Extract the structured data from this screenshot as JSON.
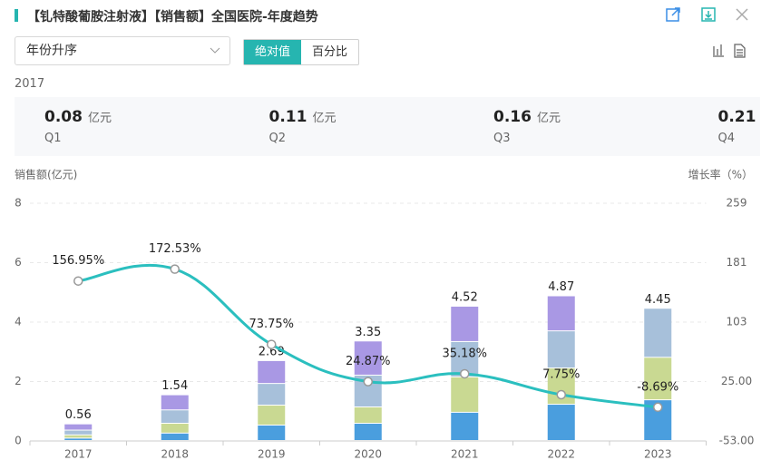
{
  "header": {
    "title": "【钆特酸葡胺注射液】【销售额】全国医院-年度趋势"
  },
  "controls": {
    "sort": "年份升序",
    "modes": [
      "绝对值",
      "百分比"
    ]
  },
  "summary_unit": "亿元",
  "chart_data": {
    "type": "stacked_bar_line",
    "y_label": "销售额(亿元)",
    "y2_label": "增长率（%）",
    "categories": [
      "2017",
      "2018",
      "2019",
      "2020",
      "2021",
      "2022",
      "2023"
    ],
    "series": [
      {
        "name": "Q1",
        "color": "#4a9ede",
        "values": [
          0.08,
          0.25,
          0.52,
          0.58,
          0.95,
          1.22,
          1.37
        ]
      },
      {
        "name": "Q2",
        "color": "#c9d992",
        "values": [
          0.11,
          0.33,
          0.67,
          0.55,
          1.19,
          1.22,
          1.43
        ]
      },
      {
        "name": "Q3",
        "color": "#a7c0da",
        "values": [
          0.16,
          0.45,
          0.73,
          1.07,
          1.19,
          1.25,
          1.65
        ]
      },
      {
        "name": "Q4",
        "color": "#a998e4",
        "values": [
          0.21,
          0.51,
          0.77,
          1.15,
          1.19,
          1.18,
          null
        ]
      },
      {
        "type": "line",
        "axis": "y2",
        "color": "#2bbfbf",
        "values": [
          156.95,
          172.53,
          73.75,
          24.87,
          35.18,
          7.75,
          -8.69
        ],
        "value_labels": [
          "156.95%",
          "172.53%",
          "73.75%",
          "24.87%",
          "35.18%",
          "7.75%",
          "-8.69%"
        ]
      }
    ],
    "totals": [
      0.56,
      1.54,
      2.69,
      3.35,
      4.52,
      4.87,
      4.45
    ],
    "ylim": [
      0,
      8
    ],
    "yticks": [
      0,
      2,
      4,
      6,
      8
    ],
    "y2lim": [
      -53,
      259
    ],
    "y2ticks": [
      {
        "value": -53,
        "label": "-53.00"
      },
      {
        "value": 25,
        "label": "25.00"
      },
      103,
      181,
      259
    ],
    "grid": true
  }
}
